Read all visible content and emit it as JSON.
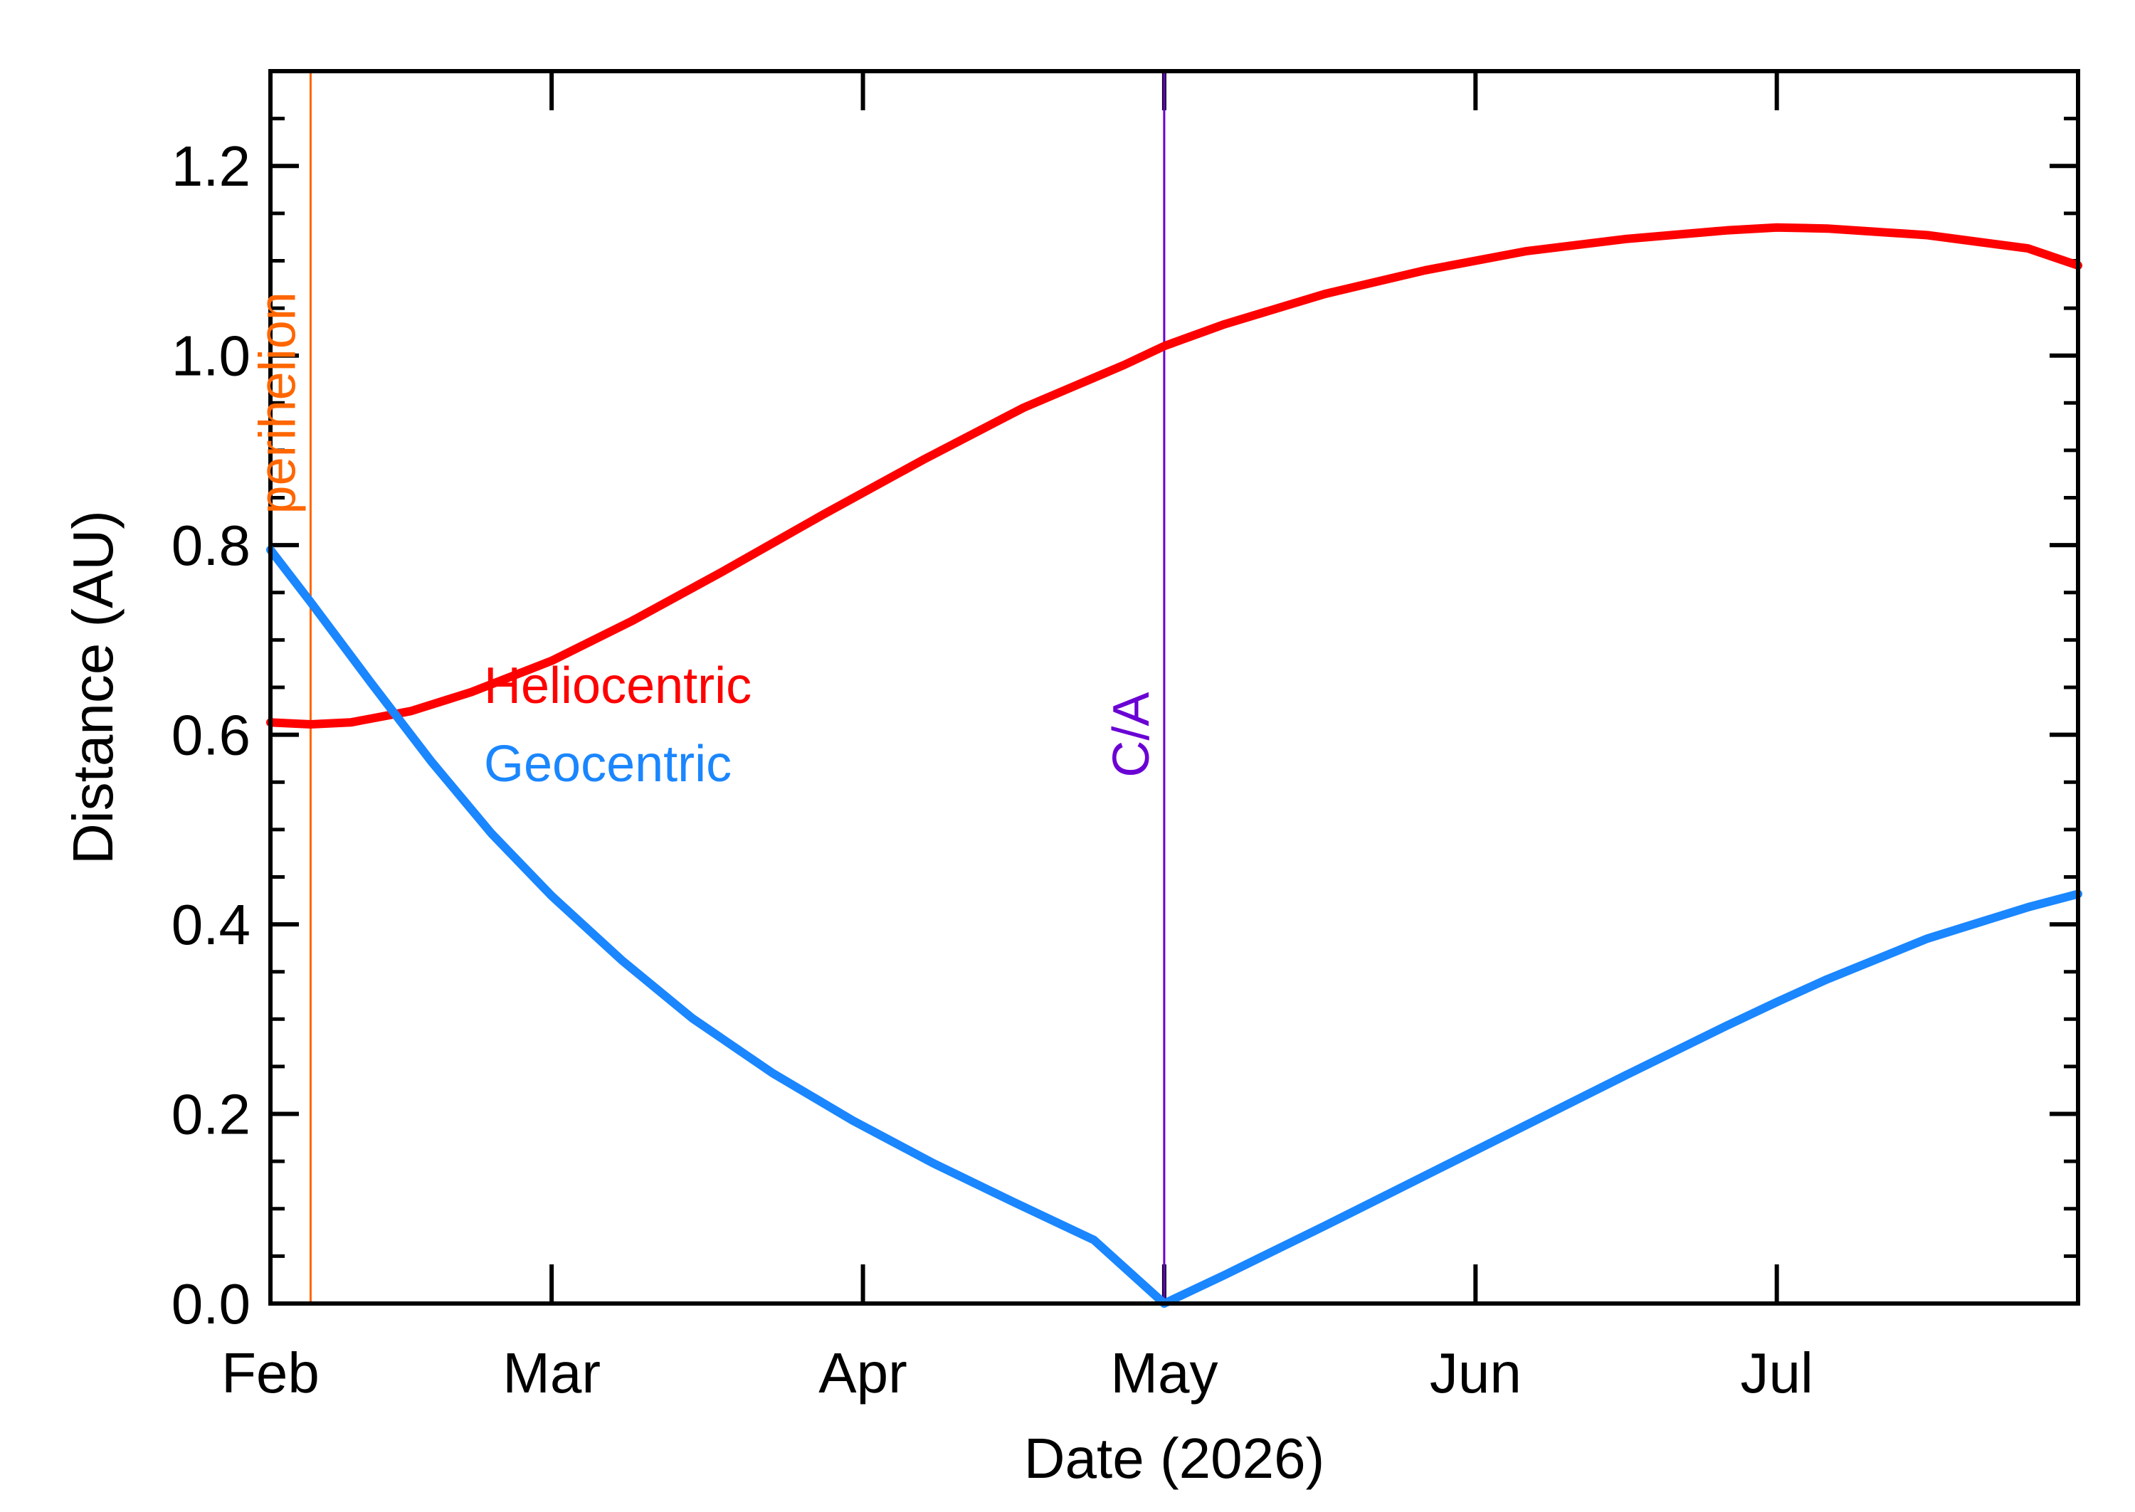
{
  "chart_data": {
    "type": "line",
    "xlabel": "Date (2026)",
    "ylabel": "Distance (AU)",
    "ylim": [
      0.0,
      1.3
    ],
    "x_range_days": [
      0,
      180
    ],
    "x_ticks": [
      {
        "label": "Feb",
        "day": 0
      },
      {
        "label": "Mar",
        "day": 28
      },
      {
        "label": "Apr",
        "day": 59
      },
      {
        "label": "May",
        "day": 89
      },
      {
        "label": "Jun",
        "day": 120
      },
      {
        "label": "Jul",
        "day": 150
      }
    ],
    "y_ticks": [
      "0.0",
      "0.2",
      "0.4",
      "0.6",
      "0.8",
      "1.0",
      "1.2"
    ],
    "y_tick_values": [
      0.0,
      0.2,
      0.4,
      0.6,
      0.8,
      1.0,
      1.2
    ],
    "markers": [
      {
        "label": "perihelion",
        "day": 4,
        "color": "#ff6600"
      },
      {
        "label": "C/A",
        "day": 89,
        "color": "#6a00d4"
      }
    ],
    "series": [
      {
        "name": "Heliocentric",
        "color": "#ff0000",
        "x": [
          0,
          4,
          8,
          14,
          20,
          28,
          36,
          45,
          55,
          65,
          75,
          85,
          89,
          95,
          105,
          115,
          125,
          135,
          145,
          150,
          155,
          165,
          175,
          180
        ],
        "y": [
          0.613,
          0.611,
          0.613,
          0.625,
          0.645,
          0.678,
          0.72,
          0.772,
          0.832,
          0.89,
          0.945,
          0.99,
          1.01,
          1.033,
          1.065,
          1.09,
          1.11,
          1.123,
          1.132,
          1.135,
          1.134,
          1.127,
          1.113,
          1.095
        ]
      },
      {
        "name": "Geocentric",
        "color": "#1a86ff",
        "x": [
          0,
          4,
          10,
          16,
          22,
          28,
          35,
          42,
          50,
          58,
          66,
          74,
          82,
          89,
          95,
          105,
          115,
          125,
          135,
          145,
          150,
          155,
          165,
          175,
          180
        ],
        "y": [
          0.795,
          0.74,
          0.655,
          0.572,
          0.496,
          0.43,
          0.362,
          0.301,
          0.243,
          0.193,
          0.148,
          0.107,
          0.067,
          0.0,
          0.03,
          0.082,
          0.135,
          0.188,
          0.241,
          0.293,
          0.318,
          0.342,
          0.385,
          0.418,
          0.432
        ]
      }
    ]
  }
}
